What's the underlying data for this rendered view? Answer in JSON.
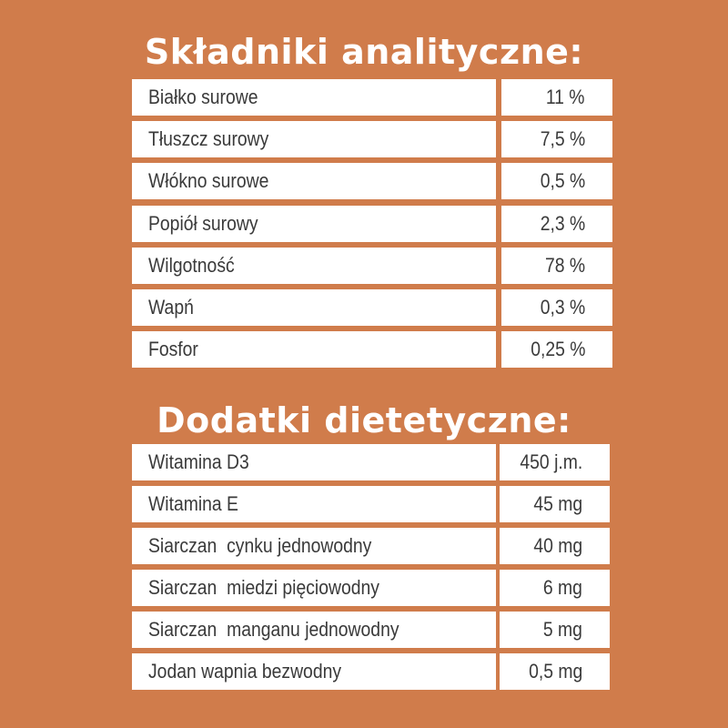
{
  "sections": [
    {
      "title": "Składniki analityczne:",
      "rows": [
        [
          "Białko surowe",
          "11 %"
        ],
        [
          "Tłuszcz surowy",
          "7,5 %"
        ],
        [
          "Włókno surowe",
          "0,5 %"
        ],
        [
          "Popiół surowy",
          "2,3 %"
        ],
        [
          "Wilgotność",
          "78 %"
        ],
        [
          "Wapń",
          "0,3 %"
        ],
        [
          "Fosfor",
          "0,25 %"
        ]
      ]
    },
    {
      "title": "Dodatki dietetyczne:",
      "rows": [
        [
          "Witamina D3",
          "450 j.m."
        ],
        [
          "Witamina E",
          "45 mg"
        ],
        [
          "Siarczan  cynku jednowodny",
          "40 mg"
        ],
        [
          "Siarczan  miedzi pięciowodny",
          "6 mg"
        ],
        [
          "Siarczan  manganu jednowodny",
          "5 mg"
        ],
        [
          "Jodan wapnia bezwodny",
          "0,5 mg"
        ]
      ]
    }
  ]
}
